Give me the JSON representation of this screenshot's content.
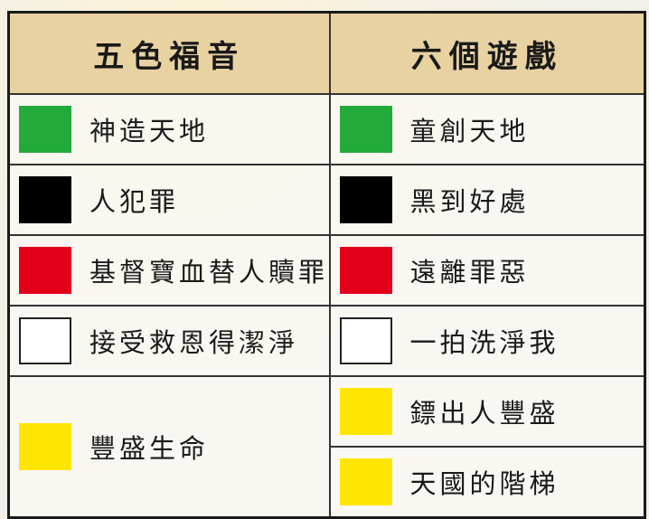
{
  "table": {
    "headers": [
      "五色福音",
      "六個遊戲"
    ],
    "rows": [
      {
        "left": {
          "color": "#22ab3b",
          "label": "神造天地"
        },
        "right": [
          {
            "color": "#22ab3b",
            "label": "童創天地"
          }
        ]
      },
      {
        "left": {
          "color": "#000000",
          "label": "人犯罪"
        },
        "right": [
          {
            "color": "#000000",
            "label": "黑到好處"
          }
        ]
      },
      {
        "left": {
          "color": "#e4001b",
          "label": "基督寶血替人贖罪"
        },
        "right": [
          {
            "color": "#e4001b",
            "label": "遠離罪惡"
          }
        ]
      },
      {
        "left": {
          "color": "#ffffff",
          "label": "接受救恩得潔淨"
        },
        "right": [
          {
            "color": "#ffffff",
            "label": "一拍洗淨我"
          }
        ]
      },
      {
        "left": {
          "color": "#ffe600",
          "label": "豐盛生命"
        },
        "right": [
          {
            "color": "#ffe600",
            "label": "鏢出人豐盛"
          },
          {
            "color": "#ffe600",
            "label": "天國的階梯"
          }
        ]
      }
    ]
  }
}
